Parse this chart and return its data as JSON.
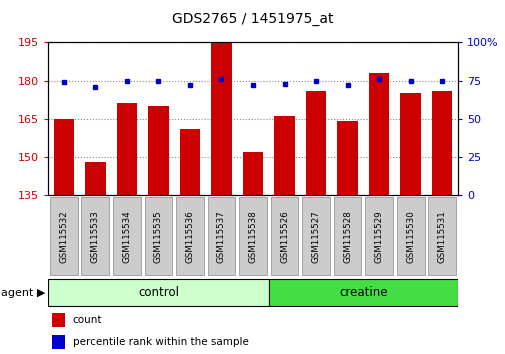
{
  "title": "GDS2765 / 1451975_at",
  "samples": [
    "GSM115532",
    "GSM115533",
    "GSM115534",
    "GSM115535",
    "GSM115536",
    "GSM115537",
    "GSM115538",
    "GSM115526",
    "GSM115527",
    "GSM115528",
    "GSM115529",
    "GSM115530",
    "GSM115531"
  ],
  "counts": [
    165,
    148,
    171,
    170,
    161,
    196,
    152,
    166,
    176,
    164,
    183,
    175,
    176
  ],
  "percentiles": [
    74,
    71,
    75,
    75,
    72,
    76,
    72,
    73,
    75,
    72,
    76,
    75,
    75
  ],
  "groups": [
    "control",
    "control",
    "control",
    "control",
    "control",
    "control",
    "control",
    "creatine",
    "creatine",
    "creatine",
    "creatine",
    "creatine",
    "creatine"
  ],
  "ylim_left": [
    135,
    195
  ],
  "ylim_right": [
    0,
    100
  ],
  "yticks_left": [
    135,
    150,
    165,
    180,
    195
  ],
  "yticks_right": [
    0,
    25,
    50,
    75,
    100
  ],
  "bar_color": "#cc0000",
  "dot_color": "#0000cc",
  "control_color": "#ccffcc",
  "creatine_color": "#44dd44",
  "bar_width": 0.65,
  "background_color": "#ffffff",
  "title_fontsize": 10
}
